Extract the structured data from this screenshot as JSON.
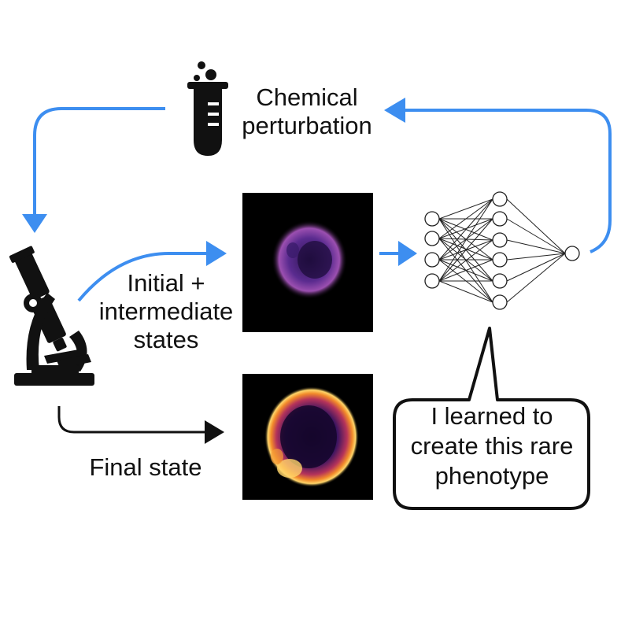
{
  "labels": {
    "chemical_line1": "Chemical",
    "chemical_line2": "perturbation",
    "initial_line1": "Initial +",
    "initial_line2": "intermediate",
    "initial_line3": "states",
    "final": "Final state",
    "bubble_line1": "I learned to",
    "bubble_line2": "create this rare",
    "bubble_line3": "phenotype"
  },
  "icons": {
    "test_tube": "test-tube-icon",
    "microscope": "microscope-icon",
    "network": "neural-network-icon"
  },
  "colors": {
    "loop_arrow": "#3d8ef0",
    "black_arrow": "#111111",
    "cell_background": "#000000"
  }
}
